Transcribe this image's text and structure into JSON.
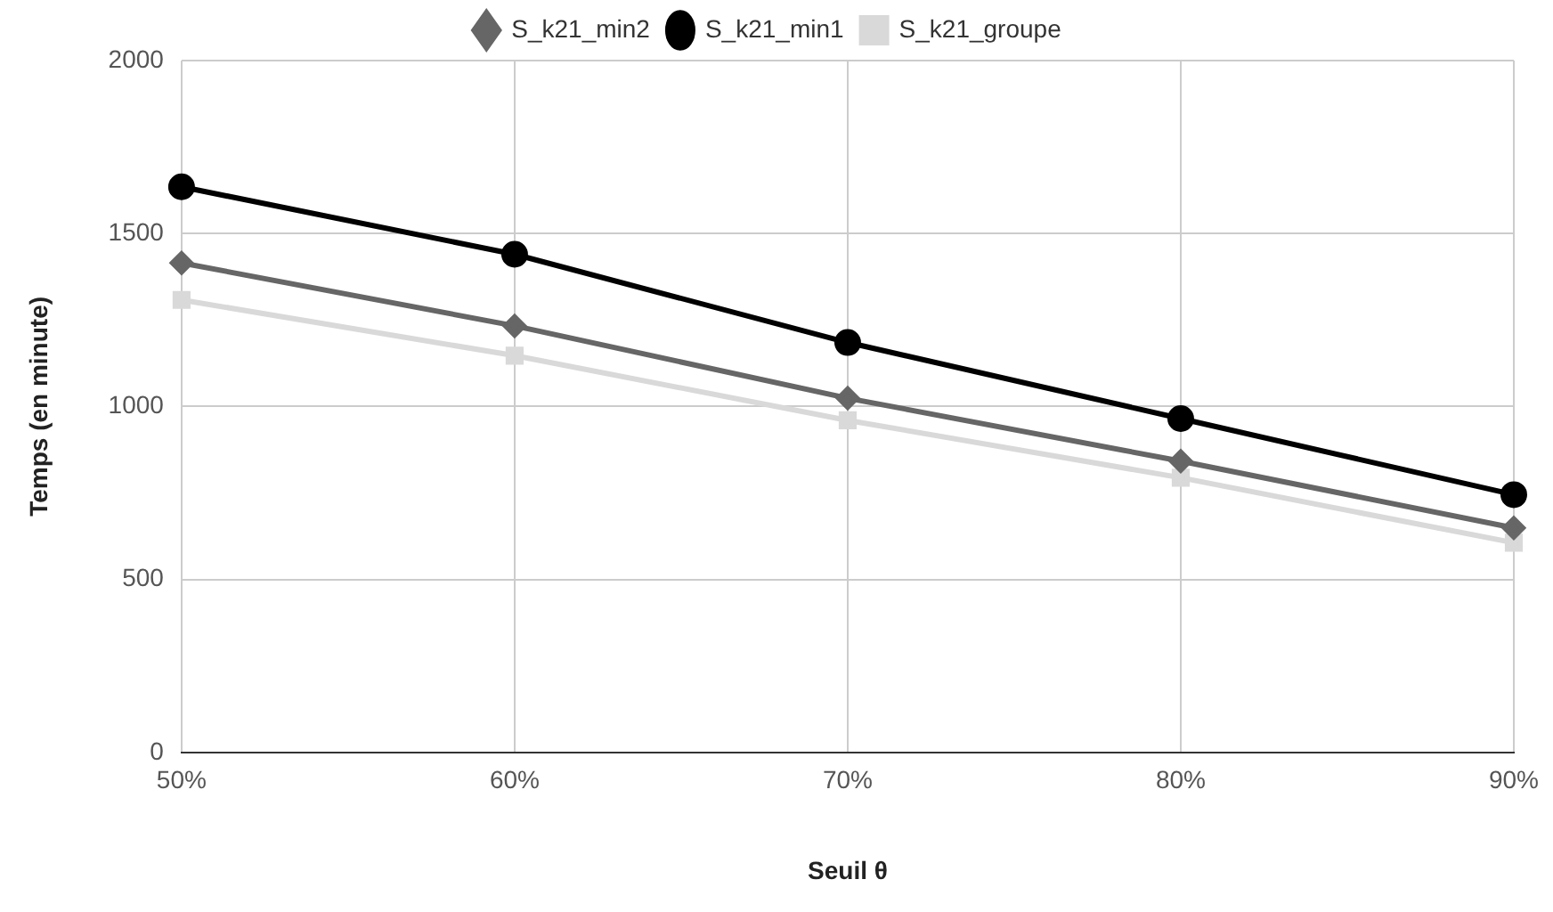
{
  "chart_data": {
    "type": "line",
    "xlabel": "Seuil θ",
    "ylabel": "Temps (en minute)",
    "categories": [
      "50%",
      "60%",
      "70%",
      "80%",
      "90%"
    ],
    "ylim": [
      0,
      2000
    ],
    "yticks": [
      0,
      500,
      1000,
      1500,
      2000
    ],
    "grid": true,
    "legend": "top",
    "series": [
      {
        "name": "S_k21_min2",
        "color": "#666666",
        "marker": "diamond",
        "values": [
          1415,
          1233,
          1024,
          842,
          649
        ]
      },
      {
        "name": "S_k21_min1",
        "color": "#000000",
        "marker": "circle",
        "values": [
          1635,
          1440,
          1185,
          965,
          745
        ]
      },
      {
        "name": "S_k21_groupe",
        "color": "#d9d9d9",
        "marker": "square",
        "values": [
          1308,
          1147,
          960,
          794,
          606
        ]
      }
    ]
  }
}
